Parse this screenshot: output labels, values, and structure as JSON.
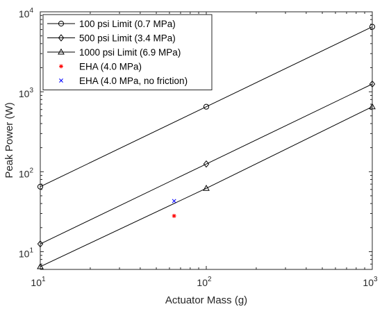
{
  "chart_data": {
    "type": "line",
    "xlabel": "Actuator Mass (g)",
    "ylabel": "Peak Power (W)",
    "xscale": "log",
    "yscale": "log",
    "xlim": [
      10,
      1000
    ],
    "ylim": [
      6,
      10000
    ],
    "grid": false,
    "legend_position": "top-left",
    "x_ticks": [
      {
        "base": "10",
        "exp": "1",
        "value": 10
      },
      {
        "base": "10",
        "exp": "2",
        "value": 100
      },
      {
        "base": "10",
        "exp": "3",
        "value": 1000
      }
    ],
    "y_ticks": [
      {
        "base": "10",
        "exp": "1",
        "value": 10
      },
      {
        "base": "10",
        "exp": "2",
        "value": 100
      },
      {
        "base": "10",
        "exp": "3",
        "value": 1000
      },
      {
        "base": "10",
        "exp": "4",
        "value": 10000
      }
    ],
    "series": [
      {
        "name": "100 psi Limit (0.7 MPa)",
        "marker": "circle",
        "color": "#000000",
        "x": [
          10,
          100,
          1000
        ],
        "y": [
          65,
          650,
          6500
        ]
      },
      {
        "name": "500 psi Limit (3.4 MPa)",
        "marker": "diamond",
        "color": "#000000",
        "x": [
          10,
          100,
          1000
        ],
        "y": [
          12.5,
          125,
          1250
        ]
      },
      {
        "name": "1000 psi Limit (6.9 MPa)",
        "marker": "triangle",
        "color": "#000000",
        "x": [
          10,
          100,
          1000
        ],
        "y": [
          6.5,
          62,
          650
        ]
      },
      {
        "name": "EHA (4.0 MPa)",
        "marker": "asterisk",
        "color": "#ff0000",
        "x": [
          64
        ],
        "y": [
          28
        ],
        "line": false
      },
      {
        "name": "EHA (4.0 MPa, no friction)",
        "marker": "x",
        "color": "#0000ff",
        "x": [
          64
        ],
        "y": [
          43
        ],
        "line": false
      }
    ]
  }
}
